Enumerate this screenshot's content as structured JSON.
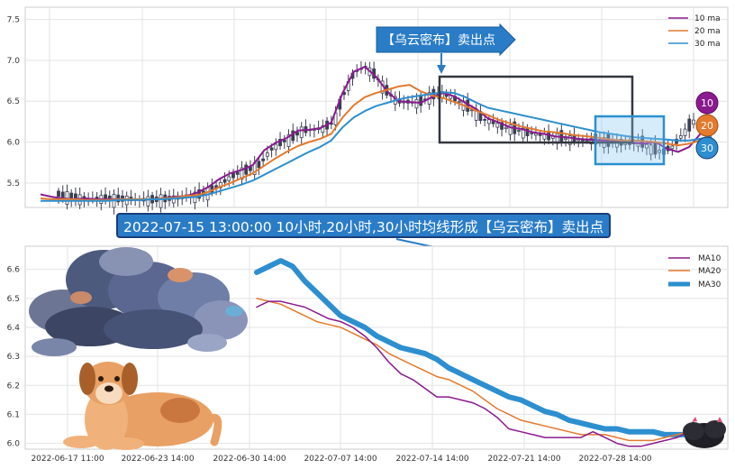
{
  "chart_data": [
    {
      "type": "candlestick",
      "title": "",
      "ylim": [
        5.2,
        7.65
      ],
      "yticks": [
        "5.5",
        "6.0",
        "6.5",
        "7.0",
        "7.5"
      ],
      "legend": {
        "placement": "top-right",
        "entries": [
          "10 ma",
          "20 ma",
          "30 ma"
        ]
      },
      "grid": true,
      "ma_badges": [
        "10",
        "20",
        "30"
      ],
      "callout": "【乌云密布】卖出点",
      "series": [
        {
          "name": "10 ma",
          "color": "#8b1a8f",
          "values": [
            5.36,
            5.33,
            5.31,
            5.3,
            5.31,
            5.3,
            5.3,
            5.3,
            5.29,
            5.29,
            5.3,
            5.31,
            5.33,
            5.34,
            5.38,
            5.45,
            5.55,
            5.62,
            5.66,
            5.72,
            5.9,
            5.99,
            6.05,
            6.14,
            6.15,
            6.17,
            6.24,
            6.6,
            6.86,
            6.92,
            6.8,
            6.62,
            6.5,
            6.49,
            6.48,
            6.55,
            6.6,
            6.56,
            6.48,
            6.4,
            6.29,
            6.24,
            6.18,
            6.16,
            6.12,
            6.1,
            6.07,
            6.06,
            6.04,
            6.03,
            6.02,
            6.02,
            6.0,
            5.99,
            5.98,
            6.0,
            5.92,
            5.88,
            5.94,
            6.1,
            6.25
          ]
        },
        {
          "name": "20 ma",
          "color": "#e47a2e",
          "values": [
            5.31,
            5.3,
            5.3,
            5.3,
            5.29,
            5.29,
            5.29,
            5.3,
            5.3,
            5.3,
            5.3,
            5.31,
            5.32,
            5.34,
            5.35,
            5.39,
            5.45,
            5.5,
            5.56,
            5.62,
            5.71,
            5.8,
            5.88,
            5.95,
            6.0,
            6.04,
            6.1,
            6.3,
            6.45,
            6.55,
            6.6,
            6.64,
            6.68,
            6.7,
            6.62,
            6.57,
            6.54,
            6.49,
            6.44,
            6.38,
            6.33,
            6.27,
            6.23,
            6.19,
            6.16,
            6.13,
            6.12,
            6.1,
            6.08,
            6.07,
            6.05,
            6.03,
            6.02,
            6.02,
            6.01,
            6.0,
            5.98,
            5.96,
            5.98,
            6.02,
            6.06
          ]
        },
        {
          "name": "30 ma",
          "color": "#2d8fcf",
          "values": [
            5.28,
            5.28,
            5.28,
            5.28,
            5.28,
            5.28,
            5.28,
            5.29,
            5.29,
            5.29,
            5.3,
            5.3,
            5.31,
            5.32,
            5.33,
            5.36,
            5.4,
            5.44,
            5.48,
            5.53,
            5.6,
            5.67,
            5.74,
            5.81,
            5.88,
            5.94,
            6.02,
            6.18,
            6.3,
            6.38,
            6.44,
            6.48,
            6.52,
            6.55,
            6.57,
            6.59,
            6.61,
            6.6,
            6.55,
            6.48,
            6.42,
            6.39,
            6.36,
            6.33,
            6.3,
            6.27,
            6.24,
            6.21,
            6.18,
            6.15,
            6.12,
            6.1,
            6.08,
            6.06,
            6.05,
            6.04,
            6.03,
            6.02,
            6.02,
            6.04,
            6.07
          ]
        }
      ]
    },
    {
      "type": "line",
      "title": "",
      "ylim": [
        5.98,
        6.68
      ],
      "yticks": [
        "6.0",
        "6.1",
        "6.2",
        "6.3",
        "6.4",
        "6.5",
        "6.6"
      ],
      "xticks": [
        "2022-06-17 11:00",
        "2022-06-23 14:00",
        "2022-06-30 14:00",
        "2022-07-07 14:00",
        "2022-07-14 14:00",
        "2022-07-21 14:00",
        "2022-07-28 14:00"
      ],
      "legend": {
        "placement": "top-right",
        "entries": [
          "MA10",
          "MA20",
          "MA30"
        ]
      },
      "grid": true,
      "series": [
        {
          "name": "MA10",
          "color": "#8b1a8f",
          "values": [
            6.47,
            6.49,
            6.49,
            6.48,
            6.47,
            6.45,
            6.43,
            6.42,
            6.4,
            6.37,
            6.33,
            6.28,
            6.24,
            6.22,
            6.19,
            6.16,
            6.16,
            6.15,
            6.14,
            6.12,
            6.09,
            6.05,
            6.04,
            6.03,
            6.02,
            6.02,
            6.02,
            6.02,
            6.04,
            6.02,
            6.0,
            5.99,
            5.99,
            6.0,
            6.01,
            6.02,
            6.04
          ]
        },
        {
          "name": "MA20",
          "color": "#e47a2e",
          "values": [
            6.5,
            6.49,
            6.48,
            6.46,
            6.44,
            6.42,
            6.41,
            6.4,
            6.38,
            6.36,
            6.34,
            6.31,
            6.29,
            6.27,
            6.25,
            6.23,
            6.22,
            6.2,
            6.18,
            6.15,
            6.12,
            6.1,
            6.08,
            6.07,
            6.06,
            6.05,
            6.04,
            6.03,
            6.03,
            6.03,
            6.02,
            6.01,
            6.01,
            6.01,
            6.02,
            6.03,
            6.04
          ]
        },
        {
          "name": "MA30",
          "color": "#2d8fcf",
          "values": [
            6.59,
            6.61,
            6.63,
            6.61,
            6.56,
            6.52,
            6.48,
            6.44,
            6.42,
            6.4,
            6.37,
            6.35,
            6.33,
            6.32,
            6.31,
            6.29,
            6.26,
            6.24,
            6.22,
            6.2,
            6.18,
            6.16,
            6.15,
            6.13,
            6.11,
            6.1,
            6.08,
            6.07,
            6.06,
            6.05,
            6.05,
            6.04,
            6.04,
            6.04,
            6.03,
            6.03,
            6.03
          ]
        }
      ]
    }
  ],
  "banner": "2022-07-15 13:00:00 10小时,20小时,30小时均线形成【乌云密布】卖出点",
  "colors": {
    "ma10": "#8b1a8f",
    "ma20": "#e47a2e",
    "ma30": "#2d8fcf",
    "banner": "#2a7cc7",
    "candle": "#3b3f52"
  }
}
